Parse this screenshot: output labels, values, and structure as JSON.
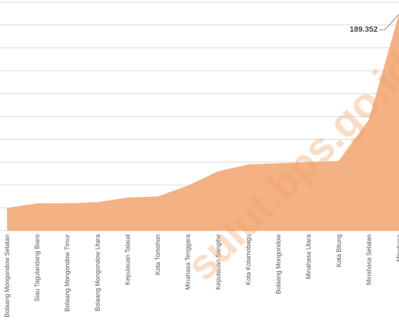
{
  "chart_data": {
    "type": "area",
    "categories": [
      "Bolaang Mongondow Selatan",
      "Siau Tagulandang Biaro",
      "Bolaang Mongondow Timur",
      "Bolaang Mongondow Utara",
      "Kepulauan Talaud",
      "Kota Tomohon",
      "Minahasa Tenggara",
      "Kepulauan Sangihe",
      "Kota Kotamobagu",
      "Bolaang Mongondow",
      "Minahasa Utara",
      "Kota Bitung",
      "Minahasa Selatan",
      "Minahasa"
    ],
    "values": [
      20,
      24,
      24,
      25,
      29,
      30,
      39.5,
      52,
      58,
      59,
      60,
      61,
      97,
      189.352
    ],
    "color": "#f4b183",
    "ylim": [
      0,
      200
    ],
    "yticks": [
      0,
      20,
      40,
      60,
      80,
      100,
      120,
      140,
      160,
      180,
      200
    ],
    "grid": true,
    "annotation": "189.352",
    "watermark": "sulut.bps.go.id"
  }
}
